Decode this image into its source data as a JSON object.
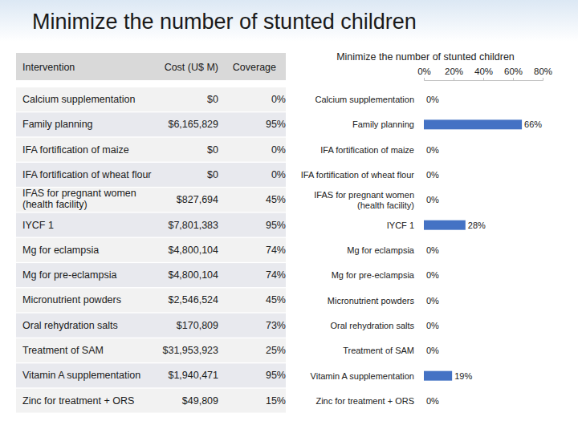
{
  "title": "Minimize the number of stunted children",
  "table": {
    "columns": [
      "Intervention",
      "Cost (U$ M)",
      "Coverage"
    ],
    "rows": [
      [
        "Calcium supplementation",
        "$0",
        "0%"
      ],
      [
        "Family planning",
        "$6,165,829",
        "95%"
      ],
      [
        "IFA fortification of maize",
        "$0",
        "0%"
      ],
      [
        "IFA fortification of wheat flour",
        "$0",
        "0%"
      ],
      [
        "IFAS for pregnant women (health facility)",
        "$827,694",
        "45%"
      ],
      [
        "IYCF 1",
        "$7,801,383",
        "95%"
      ],
      [
        "Mg for eclampsia",
        "$4,800,104",
        "74%"
      ],
      [
        "Mg for pre-eclampsia",
        "$4,800,104",
        "74%"
      ],
      [
        "Micronutrient powders",
        "$2,546,524",
        "45%"
      ],
      [
        "Oral rehydration salts",
        "$170,809",
        "73%"
      ],
      [
        "Treatment of SAM",
        "$31,953,923",
        "25%"
      ],
      [
        "Vitamin A supplementation",
        "$1,940,471",
        "95%"
      ],
      [
        "Zinc for treatment + ORS",
        "$49,809",
        "15%"
      ]
    ]
  },
  "chart_data": {
    "type": "bar",
    "orientation": "horizontal",
    "title": "Minimize the number of stunted children",
    "categories": [
      "Calcium supplementation",
      "Family planning",
      "IFA fortification of maize",
      "IFA fortification of wheat flour",
      "IFAS for pregnant women (health facility)",
      "IYCF 1",
      "Mg for eclampsia",
      "Mg for pre-eclampsia",
      "Micronutrient powders",
      "Oral rehydration salts",
      "Treatment of SAM",
      "Vitamin A supplementation",
      "Zinc for treatment + ORS"
    ],
    "values": [
      0,
      66,
      0,
      0,
      0,
      28,
      0,
      0,
      0,
      0,
      0,
      19,
      0
    ],
    "value_labels": [
      "0%",
      "66%",
      "0%",
      "0%",
      "0%",
      "28%",
      "0%",
      "0%",
      "0%",
      "0%",
      "0%",
      "19%",
      "0%"
    ],
    "data_labels": true,
    "color": "#4472c4",
    "xlim": [
      0,
      80
    ],
    "xticks": [
      {
        "value": 0,
        "label": "0%"
      },
      {
        "value": 20,
        "label": "20%"
      },
      {
        "value": 40,
        "label": "40%"
      },
      {
        "value": 60,
        "label": "60%"
      },
      {
        "value": 80,
        "label": "80%"
      }
    ],
    "grid": false
  }
}
